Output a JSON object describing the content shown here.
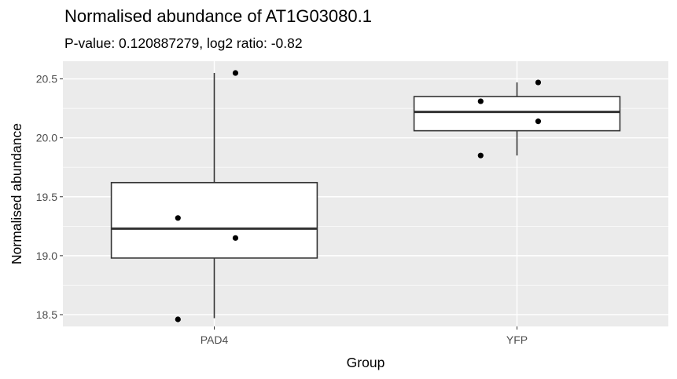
{
  "chart_data": {
    "type": "box",
    "title": "Normalised abundance of AT1G03080.1",
    "subtitle": "P-value: 0.120887279, log2 ratio: -0.82",
    "xlabel": "Group",
    "ylabel": "Normalised abundance",
    "categories": [
      "PAD4",
      "YFP"
    ],
    "y_ticks": [
      "18.5",
      "19.0",
      "19.5",
      "20.0",
      "20.5"
    ],
    "ylim": [
      18.4,
      20.65
    ],
    "grid": true,
    "boxes": [
      {
        "group": "PAD4",
        "whisker_low": 18.47,
        "q1": 18.98,
        "median": 19.23,
        "q3": 19.62,
        "whisker_high": 20.55
      },
      {
        "group": "YFP",
        "whisker_low": 19.85,
        "q1": 20.06,
        "median": 20.22,
        "q3": 20.35,
        "whisker_high": 20.47
      }
    ],
    "points": [
      {
        "group": "PAD4",
        "y": 20.55
      },
      {
        "group": "PAD4",
        "y": 19.32
      },
      {
        "group": "PAD4",
        "y": 19.15
      },
      {
        "group": "PAD4",
        "y": 18.46
      },
      {
        "group": "YFP",
        "y": 20.47
      },
      {
        "group": "YFP",
        "y": 20.31
      },
      {
        "group": "YFP",
        "y": 20.14
      },
      {
        "group": "YFP",
        "y": 19.85
      }
    ],
    "colors": {
      "panel": "#ebebeb",
      "grid": "#ffffff",
      "box_line": "#333333",
      "point": "#000000"
    }
  }
}
